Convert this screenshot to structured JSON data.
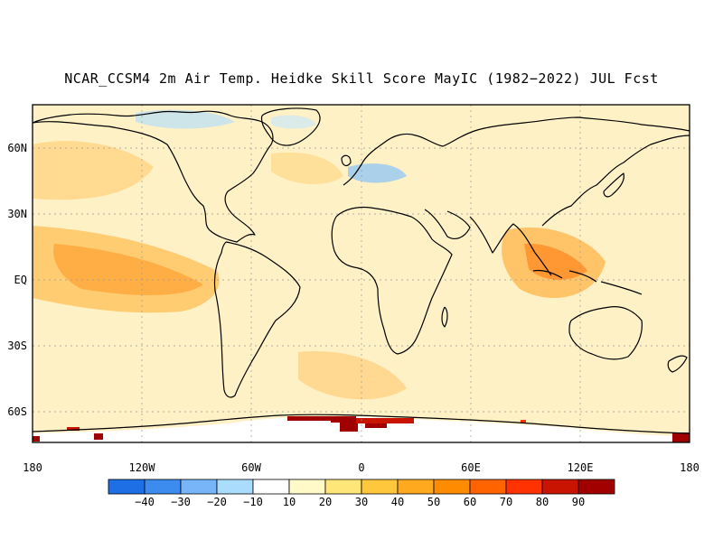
{
  "title": "NCAR_CCSM4 2m Air Temp. Heidke Skill Score MayIC (1982−2022) JUL Fcst",
  "lat_labels": [
    "60N",
    "30N",
    "EQ",
    "30S",
    "60S"
  ],
  "lon_labels": [
    "180",
    "120W",
    "60W",
    "0",
    "60E",
    "120E",
    "180"
  ],
  "colorbar": {
    "labels": [
      "−40",
      "−30",
      "−20",
      "−10",
      "10",
      "20",
      "30",
      "40",
      "50",
      "60",
      "70",
      "80",
      "90"
    ],
    "colors": [
      "#1e6ee6",
      "#3c8cf0",
      "#78b4f8",
      "#aadcfc",
      "#ffffff",
      "#fffac8",
      "#ffe678",
      "#ffc83c",
      "#ffaa1e",
      "#ff8c00",
      "#ff6400",
      "#ff3200",
      "#c81400",
      "#a00000"
    ]
  }
}
